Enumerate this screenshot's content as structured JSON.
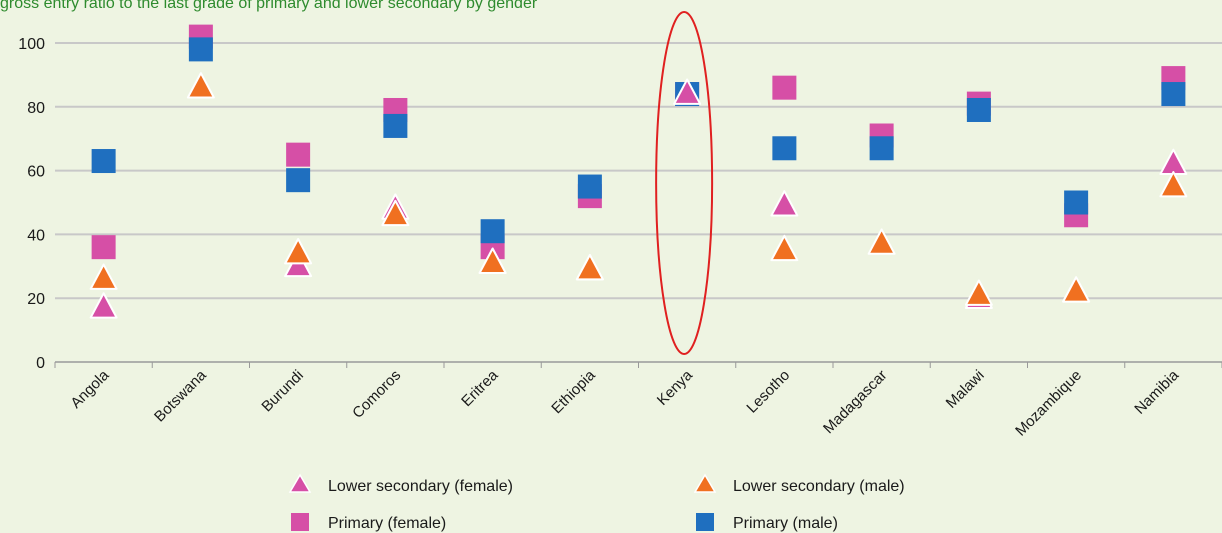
{
  "chart_data": {
    "type": "scatter",
    "title": "gross entry ratio to the last grade of primary and lower secondary by gender",
    "categories": [
      "Angola",
      "Botswana",
      "Burundi",
      "Comoros",
      "Eritrea",
      "Ethiopia",
      "Kenya",
      "Lesotho",
      "Madagascar",
      "Malawi",
      "Mozambique",
      "Namibia"
    ],
    "ylim": [
      0,
      100
    ],
    "yticks": [
      0,
      20,
      40,
      60,
      80,
      100
    ],
    "grid": true,
    "legend_position": "bottom",
    "highlight": "Kenya",
    "series": [
      {
        "name": "Lower secondary (female)",
        "marker": "triangle",
        "color": "#d64fa6",
        "values": [
          17,
          null,
          30,
          48,
          31,
          29,
          84,
          49,
          null,
          20,
          22,
          62
        ]
      },
      {
        "name": "Lower secondary (male)",
        "marker": "triangle",
        "color": "#f07020",
        "values": [
          26,
          86,
          34,
          46,
          31,
          29,
          null,
          35,
          37,
          21,
          22,
          55
        ]
      },
      {
        "name": "Primary (female)",
        "marker": "square",
        "color": "#d64fa6",
        "values": [
          36,
          102,
          65,
          79,
          36,
          52,
          84,
          86,
          71,
          81,
          46,
          89
        ]
      },
      {
        "name": "Primary (male)",
        "marker": "square",
        "color": "#1f6fbf",
        "values": [
          63,
          98,
          57,
          74,
          41,
          55,
          84,
          67,
          67,
          79,
          50,
          84
        ]
      }
    ]
  },
  "colors": {
    "background": "#eef4e2",
    "gridline": "#c8c8c8",
    "highlight_ellipse": "#e02020",
    "title": "#2e8b2e"
  }
}
